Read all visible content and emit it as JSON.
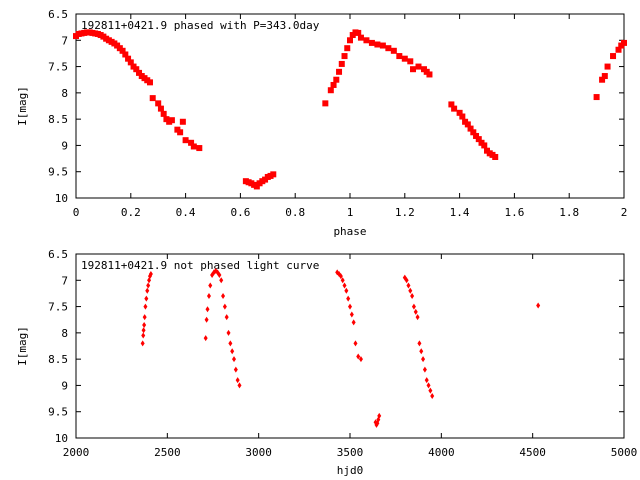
{
  "chart_data": [
    {
      "type": "scatter",
      "title": "192811+0421.9 phased with P=343.0day",
      "xlabel": "phase",
      "ylabel": "I[mag]",
      "xlim": [
        0,
        2
      ],
      "ylim": [
        10,
        6.5
      ],
      "y_inverted": true,
      "x_ticks": [
        "0",
        "0.2",
        "0.4",
        "0.6",
        "0.8",
        "1",
        "1.2",
        "1.4",
        "1.6",
        "1.8",
        "2"
      ],
      "y_ticks": [
        "6.5",
        "7",
        "7.5",
        "8",
        "8.5",
        "9",
        "9.5",
        "10"
      ],
      "marker_color": "#ff0000",
      "marker": "square",
      "series": [
        {
          "x": [
            0.0,
            0.01,
            0.02,
            0.03,
            0.04,
            0.05,
            0.06,
            0.07,
            0.08,
            0.09,
            0.1,
            0.11,
            0.12,
            0.13,
            0.14,
            0.15,
            0.16,
            0.17,
            0.18,
            0.19,
            0.2,
            0.21,
            0.22,
            0.23,
            0.24,
            0.25,
            0.26,
            0.27,
            0.28,
            0.3,
            0.31,
            0.32,
            0.33,
            0.34,
            0.35,
            0.37,
            0.38,
            0.39,
            0.4,
            0.42,
            0.43,
            0.45,
            0.62,
            0.63,
            0.64,
            0.65,
            0.66,
            0.67,
            0.68,
            0.69,
            0.7,
            0.71,
            0.72,
            0.91,
            0.93,
            0.94,
            0.95,
            0.96,
            0.97,
            0.98,
            0.99,
            1.0,
            1.01,
            1.02,
            1.03,
            1.04,
            1.06,
            1.08,
            1.1,
            1.12,
            1.14,
            1.16,
            1.18,
            1.2,
            1.22,
            1.23,
            1.25,
            1.27,
            1.28,
            1.29,
            1.37,
            1.38,
            1.4,
            1.41,
            1.42,
            1.43,
            1.44,
            1.45,
            1.46,
            1.47,
            1.48,
            1.49,
            1.5,
            1.51,
            1.52,
            1.53,
            1.9,
            1.92,
            1.93,
            1.94,
            1.96,
            1.98,
            1.99,
            2.0
          ],
          "y": [
            6.92,
            6.88,
            6.87,
            6.86,
            6.85,
            6.85,
            6.86,
            6.87,
            6.88,
            6.9,
            6.93,
            6.97,
            7.0,
            7.03,
            7.06,
            7.1,
            7.15,
            7.2,
            7.27,
            7.35,
            7.42,
            7.5,
            7.55,
            7.62,
            7.68,
            7.72,
            7.76,
            7.8,
            8.1,
            8.2,
            8.3,
            8.4,
            8.5,
            8.55,
            8.52,
            8.7,
            8.75,
            8.55,
            8.9,
            8.95,
            9.02,
            9.05,
            9.68,
            9.7,
            9.72,
            9.75,
            9.78,
            9.72,
            9.68,
            9.65,
            9.6,
            9.58,
            9.55,
            8.2,
            7.95,
            7.85,
            7.75,
            7.6,
            7.45,
            7.3,
            7.15,
            7.0,
            6.9,
            6.85,
            6.86,
            6.95,
            7.0,
            7.05,
            7.08,
            7.1,
            7.15,
            7.2,
            7.3,
            7.35,
            7.4,
            7.55,
            7.5,
            7.55,
            7.6,
            7.65,
            8.22,
            8.3,
            8.38,
            8.45,
            8.55,
            8.6,
            8.68,
            8.75,
            8.82,
            8.88,
            8.95,
            9.0,
            9.1,
            9.15,
            9.18,
            9.22,
            8.08,
            7.75,
            7.68,
            7.5,
            7.3,
            7.18,
            7.1,
            7.05
          ]
        }
      ]
    },
    {
      "type": "scatter",
      "title": "192811+0421.9 not phased light curve",
      "xlabel": "hjd0",
      "ylabel": "I[mag]",
      "xlim": [
        2000,
        5000
      ],
      "ylim": [
        10,
        6.5
      ],
      "y_inverted": true,
      "x_ticks": [
        "2000",
        "2500",
        "3000",
        "3500",
        "4000",
        "4500",
        "5000"
      ],
      "y_ticks": [
        "6.5",
        "7",
        "7.5",
        "8",
        "8.5",
        "9",
        "9.5",
        "10"
      ],
      "marker_color": "#ff0000",
      "marker": "diamond",
      "series": [
        {
          "x": [
            2365,
            2368,
            2370,
            2373,
            2376,
            2380,
            2385,
            2390,
            2395,
            2400,
            2405,
            2410,
            2710,
            2715,
            2720,
            2728,
            2735,
            2745,
            2755,
            2765,
            2775,
            2785,
            2795,
            2805,
            2815,
            2825,
            2835,
            2845,
            2855,
            2865,
            2875,
            2885,
            2895,
            3430,
            3440,
            3450,
            3460,
            3470,
            3480,
            3490,
            3500,
            3510,
            3520,
            3530,
            3545,
            3560,
            3640,
            3645,
            3650,
            3655,
            3660,
            3800,
            3810,
            3820,
            3830,
            3840,
            3850,
            3860,
            3870,
            3880,
            3890,
            3900,
            3910,
            3920,
            3930,
            3940,
            3950,
            4530
          ],
          "y": [
            8.2,
            8.05,
            7.95,
            7.85,
            7.7,
            7.5,
            7.35,
            7.2,
            7.1,
            7.0,
            6.92,
            6.88,
            8.1,
            7.75,
            7.55,
            7.3,
            7.1,
            6.9,
            6.85,
            6.82,
            6.85,
            6.9,
            7.0,
            7.3,
            7.5,
            7.7,
            8.0,
            8.2,
            8.35,
            8.5,
            8.7,
            8.9,
            9.0,
            6.85,
            6.88,
            6.92,
            7.0,
            7.1,
            7.2,
            7.35,
            7.5,
            7.65,
            7.8,
            8.2,
            8.45,
            8.5,
            9.7,
            9.75,
            9.72,
            9.65,
            9.58,
            6.95,
            7.0,
            7.1,
            7.2,
            7.3,
            7.5,
            7.6,
            7.7,
            8.2,
            8.35,
            8.5,
            8.7,
            8.9,
            9.0,
            9.1,
            9.2,
            7.48
          ]
        }
      ]
    }
  ]
}
